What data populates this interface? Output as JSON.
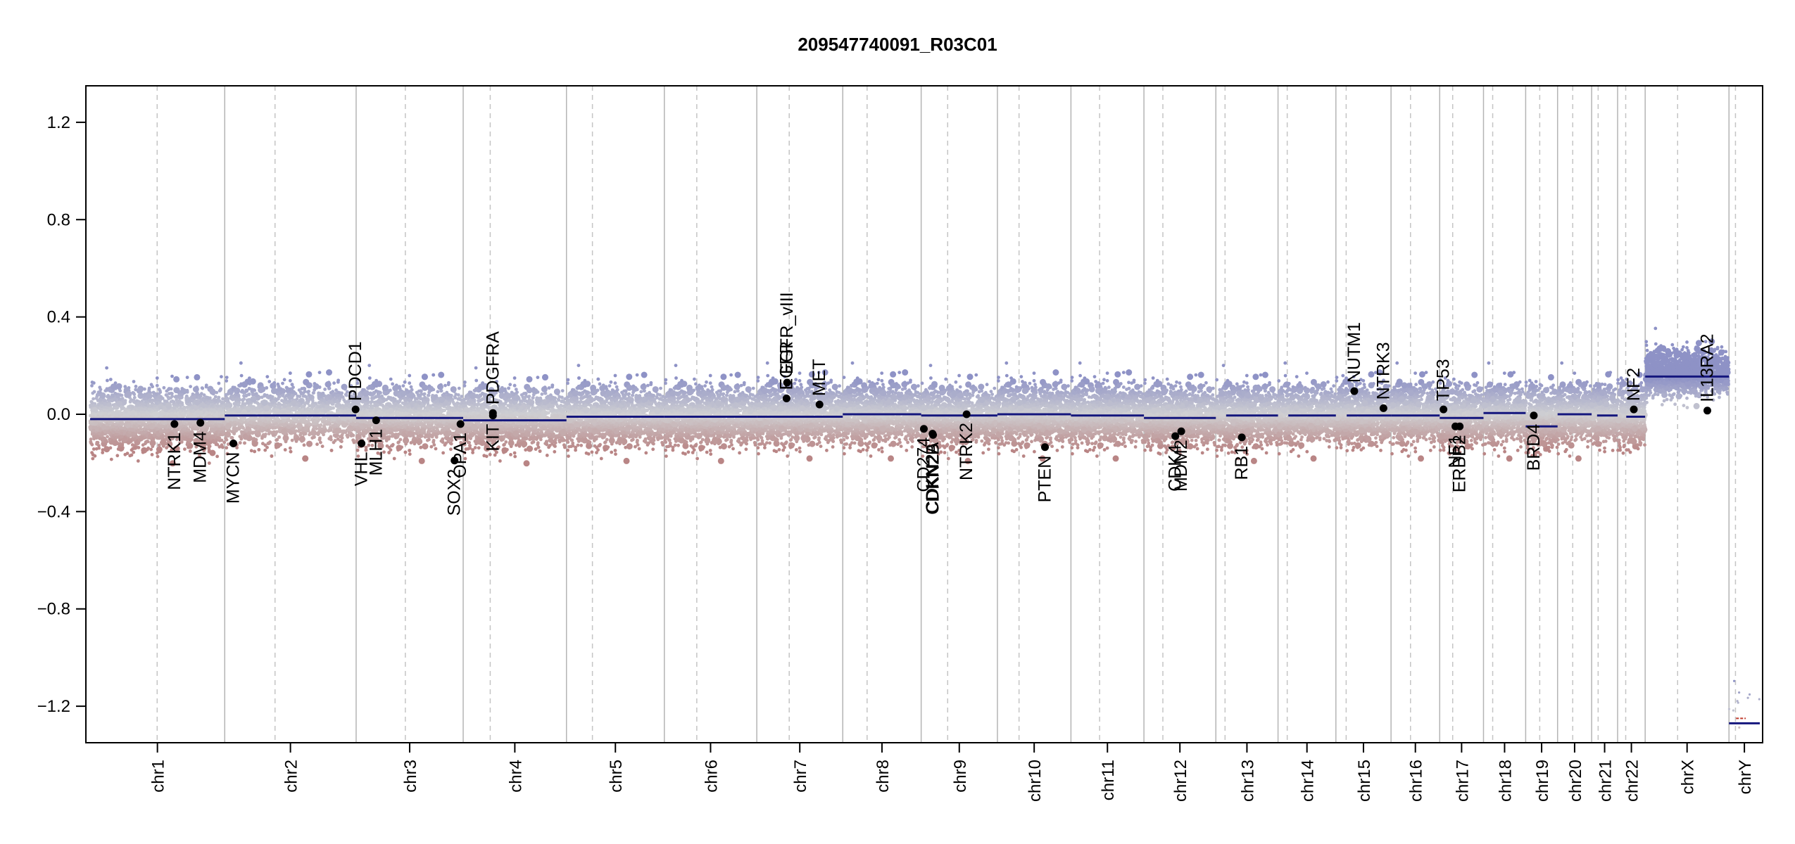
{
  "chart_data": {
    "type": "scatter",
    "title": "209547740091_R03C01",
    "xlabel": "",
    "ylabel": "",
    "ylim": [
      -1.35,
      1.35
    ],
    "y_ticks": [
      {
        "value": 1.2,
        "label": "1.2"
      },
      {
        "value": 0.8,
        "label": "0.8"
      },
      {
        "value": 0.4,
        "label": "0.4"
      },
      {
        "value": 0.0,
        "label": "0.0"
      },
      {
        "value": -0.4,
        "label": "−0.4"
      },
      {
        "value": -0.8,
        "label": "−0.8"
      },
      {
        "value": -1.2,
        "label": "−1.2"
      }
    ],
    "grid": false,
    "colors": {
      "gain": "#8e92c6",
      "neutral": "#cfcfd2",
      "loss": "#b98585",
      "segment": "#14167d",
      "gene_point": "#000000",
      "chr_boundary": "#b4b4b4",
      "centromere": "#c4c4c4",
      "chrY_red": "#c0392b"
    },
    "chromosomes": [
      {
        "name": "chr1",
        "label": "chr1",
        "length": 249,
        "centromere": 124,
        "baseline": -0.02,
        "segments": [
          {
            "start": 0,
            "end": 249,
            "value": -0.02
          }
        ],
        "dense": true
      },
      {
        "name": "chr2",
        "label": "chr2",
        "length": 243,
        "centromere": 93,
        "baseline": 0.0,
        "segments": [
          {
            "start": 0,
            "end": 243,
            "value": -0.005
          }
        ],
        "dense": true
      },
      {
        "name": "chr3",
        "label": "chr3",
        "length": 198,
        "centromere": 91,
        "baseline": -0.01,
        "segments": [
          {
            "start": 0,
            "end": 198,
            "value": -0.015
          }
        ],
        "dense": true
      },
      {
        "name": "chr4",
        "label": "chr4",
        "length": 191,
        "centromere": 50,
        "baseline": -0.02,
        "segments": [
          {
            "start": 0,
            "end": 191,
            "value": -0.025
          }
        ],
        "dense": true
      },
      {
        "name": "chr5",
        "label": "chr5",
        "length": 181,
        "centromere": 48,
        "baseline": -0.01,
        "segments": [
          {
            "start": 0,
            "end": 181,
            "value": -0.01
          }
        ],
        "dense": true
      },
      {
        "name": "chr6",
        "label": "chr6",
        "length": 171,
        "centromere": 60,
        "baseline": -0.01,
        "segments": [
          {
            "start": 0,
            "end": 171,
            "value": -0.01
          }
        ],
        "dense": true
      },
      {
        "name": "chr7",
        "label": "chr7",
        "length": 159,
        "centromere": 60,
        "baseline": 0.0,
        "segments": [
          {
            "start": 0,
            "end": 159,
            "value": -0.01
          }
        ],
        "dense": true
      },
      {
        "name": "chr8",
        "label": "chr8",
        "length": 145,
        "centromere": 45,
        "baseline": 0.0,
        "segments": [
          {
            "start": 0,
            "end": 145,
            "value": 0.0
          }
        ],
        "dense": true
      },
      {
        "name": "chr9",
        "label": "chr9",
        "length": 141,
        "centromere": 49,
        "baseline": -0.01,
        "segments": [
          {
            "start": 0,
            "end": 141,
            "value": -0.005
          }
        ],
        "dense": true
      },
      {
        "name": "chr10",
        "label": "chr10",
        "length": 136,
        "centromere": 40,
        "baseline": 0.0,
        "segments": [
          {
            "start": 0,
            "end": 136,
            "value": 0.0
          }
        ],
        "dense": true
      },
      {
        "name": "chr11",
        "label": "chr11",
        "length": 135,
        "centromere": 53,
        "baseline": 0.0,
        "segments": [
          {
            "start": 0,
            "end": 135,
            "value": -0.005
          }
        ],
        "dense": true
      },
      {
        "name": "chr12",
        "label": "chr12",
        "length": 133,
        "centromere": 35,
        "baseline": -0.01,
        "segments": [
          {
            "start": 0,
            "end": 133,
            "value": -0.015
          }
        ],
        "dense": true
      },
      {
        "name": "chr13",
        "label": "chr13",
        "length": 115,
        "centromere": 17,
        "baseline": -0.01,
        "segments": [
          {
            "start": 19,
            "end": 115,
            "value": -0.005
          }
        ],
        "dense": true
      },
      {
        "name": "chr14",
        "label": "chr14",
        "length": 107,
        "centromere": 17,
        "baseline": 0.0,
        "segments": [
          {
            "start": 19,
            "end": 107,
            "value": -0.005
          }
        ],
        "dense": true
      },
      {
        "name": "chr15",
        "label": "chr15",
        "length": 102,
        "centromere": 19,
        "baseline": 0.0,
        "segments": [
          {
            "start": 20,
            "end": 102,
            "value": -0.005
          }
        ],
        "dense": true
      },
      {
        "name": "chr16",
        "label": "chr16",
        "length": 90,
        "centromere": 36,
        "baseline": 0.0,
        "segments": [
          {
            "start": 0,
            "end": 90,
            "value": -0.005
          }
        ],
        "dense": true
      },
      {
        "name": "chr17",
        "label": "chr17",
        "length": 81,
        "centromere": 24,
        "baseline": -0.01,
        "segments": [
          {
            "start": 0,
            "end": 81,
            "value": -0.015
          }
        ],
        "dense": true
      },
      {
        "name": "chr18",
        "label": "chr18",
        "length": 78,
        "centromere": 17,
        "baseline": 0.0,
        "segments": [
          {
            "start": 0,
            "end": 78,
            "value": 0.005
          }
        ],
        "dense": true
      },
      {
        "name": "chr19",
        "label": "chr19",
        "length": 59,
        "centromere": 26,
        "baseline": -0.02,
        "segments": [
          {
            "start": 0,
            "end": 59,
            "value": -0.05
          }
        ],
        "dense": true
      },
      {
        "name": "chr20",
        "label": "chr20",
        "length": 63,
        "centromere": 28,
        "baseline": 0.0,
        "segments": [
          {
            "start": 0,
            "end": 63,
            "value": 0.0
          }
        ],
        "dense": true
      },
      {
        "name": "chr21",
        "label": "chr21",
        "length": 48,
        "centromere": 12,
        "baseline": 0.0,
        "segments": [
          {
            "start": 10,
            "end": 48,
            "value": -0.005
          }
        ],
        "dense": true
      },
      {
        "name": "chr22",
        "label": "chr22",
        "length": 51,
        "centromere": 15,
        "baseline": -0.01,
        "segments": [
          {
            "start": 16,
            "end": 51,
            "value": -0.01
          }
        ],
        "dense": true
      },
      {
        "name": "chrX",
        "label": "chrX",
        "length": 155,
        "centromere": 60,
        "baseline": 0.17,
        "segments": [
          {
            "start": 0,
            "end": 155,
            "value": 0.155
          }
        ],
        "dense": true,
        "elevated": true
      },
      {
        "name": "chrY",
        "label": "chrY",
        "length": 57,
        "centromere": 12,
        "baseline": -1.25,
        "segments": [
          {
            "start": 0,
            "end": 57,
            "value": -1.27
          }
        ],
        "dense": false,
        "red_segment": -1.25
      }
    ],
    "genes": [
      {
        "name": "NTRK1",
        "chr": "chr1",
        "pos": 156,
        "value": -0.04,
        "label_side": "below"
      },
      {
        "name": "MDM4",
        "chr": "chr1",
        "pos": 204,
        "value": -0.035,
        "label_side": "below"
      },
      {
        "name": "MYCN",
        "chr": "chr2",
        "pos": 16,
        "value": -0.12,
        "label_side": "below"
      },
      {
        "name": "PDCD1",
        "chr": "chr2",
        "pos": 242,
        "value": 0.02,
        "label_side": "above"
      },
      {
        "name": "VHL",
        "chr": "chr3",
        "pos": 10,
        "value": -0.12,
        "label_side": "below"
      },
      {
        "name": "MLH1",
        "chr": "chr3",
        "pos": 37,
        "value": -0.025,
        "label_side": "below"
      },
      {
        "name": "SOX2",
        "chr": "chr3",
        "pos": 182,
        "value": -0.19,
        "label_side": "below"
      },
      {
        "name": "OPA1",
        "chr": "chr3",
        "pos": 193,
        "value": -0.04,
        "label_side": "below"
      },
      {
        "name": "KIT",
        "chr": "chr4",
        "pos": 55,
        "value": -0.005,
        "label_side": "below"
      },
      {
        "name": "PDGFRA",
        "chr": "chr4",
        "pos": 55,
        "value": 0.005,
        "label_side": "above"
      },
      {
        "name": "EGFR",
        "chr": "chr7",
        "pos": 55,
        "value": 0.065,
        "label_side": "above"
      },
      {
        "name": "EGFR_vIII",
        "chr": "chr7",
        "pos": 56,
        "value": 0.13,
        "label_side": "above"
      },
      {
        "name": "MET",
        "chr": "chr7",
        "pos": 116,
        "value": 0.04,
        "label_side": "above"
      },
      {
        "name": "CD274",
        "chr": "chr9",
        "pos": 5,
        "value": -0.06,
        "label_side": "below"
      },
      {
        "name": "CDKN2A",
        "chr": "chr9",
        "pos": 21,
        "value": -0.08,
        "label_side": "below"
      },
      {
        "name": "CDKN2B",
        "chr": "chr9",
        "pos": 22,
        "value": -0.085,
        "label_side": "below"
      },
      {
        "name": "NTRK2",
        "chr": "chr9",
        "pos": 84,
        "value": 0.0,
        "label_side": "below"
      },
      {
        "name": "PTEN",
        "chr": "chr10",
        "pos": 88,
        "value": -0.135,
        "label_side": "below"
      },
      {
        "name": "CDK4",
        "chr": "chr12",
        "pos": 58,
        "value": -0.09,
        "label_side": "below"
      },
      {
        "name": "MDM2",
        "chr": "chr12",
        "pos": 69,
        "value": -0.07,
        "label_side": "below"
      },
      {
        "name": "RB1",
        "chr": "chr13",
        "pos": 48,
        "value": -0.095,
        "label_side": "below"
      },
      {
        "name": "NUTM1",
        "chr": "chr15",
        "pos": 34,
        "value": 0.095,
        "label_side": "above"
      },
      {
        "name": "NTRK3",
        "chr": "chr15",
        "pos": 88,
        "value": 0.025,
        "label_side": "above"
      },
      {
        "name": "TP53",
        "chr": "chr17",
        "pos": 7,
        "value": 0.02,
        "label_side": "above"
      },
      {
        "name": "NF1",
        "chr": "chr17",
        "pos": 29,
        "value": -0.05,
        "label_side": "below"
      },
      {
        "name": "ERBB2",
        "chr": "chr17",
        "pos": 37,
        "value": -0.05,
        "label_side": "below"
      },
      {
        "name": "BRD4",
        "chr": "chr19",
        "pos": 15,
        "value": -0.005,
        "label_side": "below"
      },
      {
        "name": "NF2",
        "chr": "chr22",
        "pos": 30,
        "value": 0.02,
        "label_side": "above"
      },
      {
        "name": "IL13RA2",
        "chr": "chrX",
        "pos": 115,
        "value": 0.015,
        "label_side": "above"
      }
    ]
  }
}
